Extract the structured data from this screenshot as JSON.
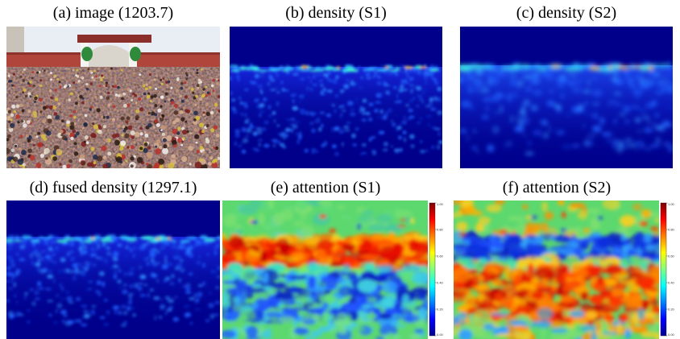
{
  "captions": {
    "a": "(a) image (1203.7)",
    "b": "(b) density (S1)",
    "c": "(c) density (S2)",
    "d": "(d) fused density (1297.1)",
    "e": "(e) attention (S1)",
    "f": "(f) attention (S2)"
  },
  "colorbar_ticks": [
    "1.00",
    "0.80",
    "0.60",
    "0.40",
    "0.20",
    "0.00"
  ],
  "colors": {
    "density_background": "#00008b",
    "attention_background": "#5cd86e",
    "jet_red": "#d00000",
    "jet_blue": "#1030e0",
    "sky": "#e9eef4",
    "wall": "#b0453c"
  }
}
